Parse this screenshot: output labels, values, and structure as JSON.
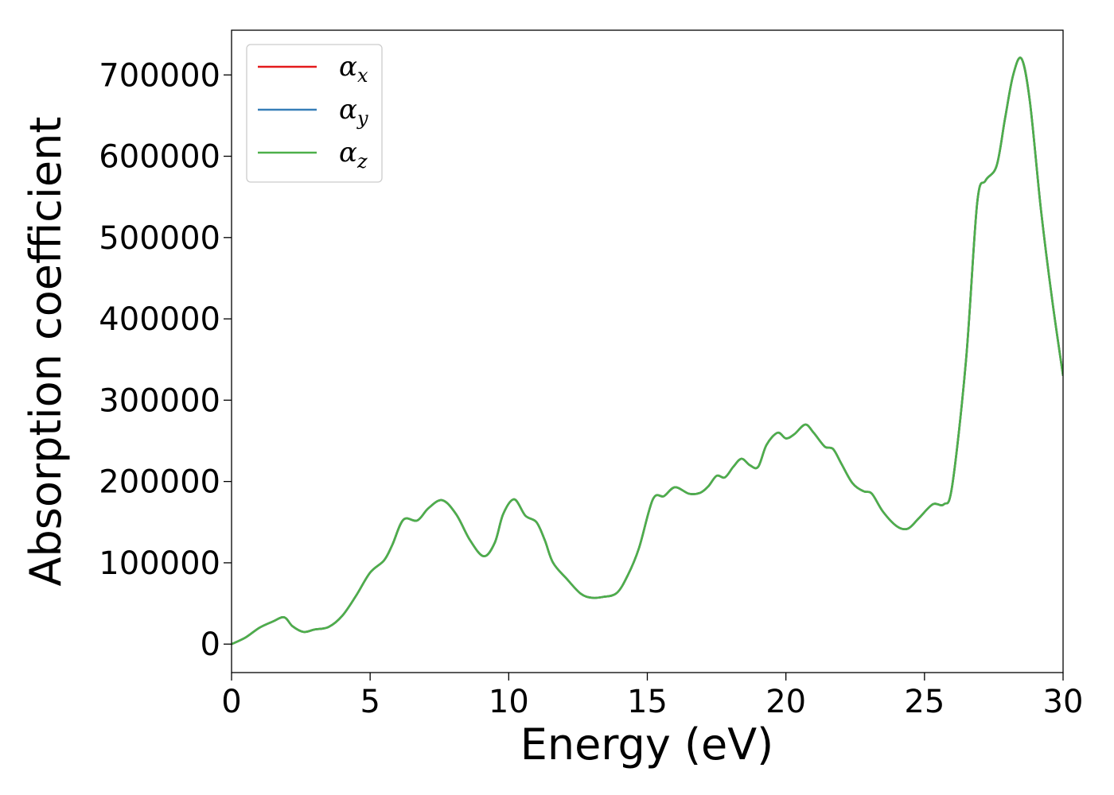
{
  "chart_data": {
    "type": "line",
    "title": "",
    "xlabel": "Energy (eV)",
    "ylabel": "Absorption coefficient",
    "xlim": [
      0,
      30
    ],
    "ylim": [
      -35000,
      755000
    ],
    "xticks": [
      0,
      5,
      10,
      15,
      20,
      25,
      30
    ],
    "yticks": [
      0,
      100000,
      200000,
      300000,
      400000,
      500000,
      600000,
      700000
    ],
    "grid": false,
    "legend_position": "top-left",
    "series": [
      {
        "name": "α_x",
        "label_main": "α",
        "label_sub": "x",
        "color": "#e41a1c",
        "x": [
          0,
          0.5,
          1,
          1.5,
          1.9,
          2.2,
          2.6,
          3,
          3.5,
          4,
          4.5,
          5,
          5.5,
          5.8,
          6.2,
          6.7,
          7.1,
          7.6,
          8.1,
          8.6,
          9.1,
          9.5,
          9.8,
          10.2,
          10.6,
          11.0,
          11.3,
          11.6,
          12.1,
          12.6,
          13.0,
          13.4,
          13.9,
          14.3,
          14.7,
          15.2,
          15.6,
          16.0,
          16.5,
          16.9,
          17.2,
          17.5,
          17.8,
          18.1,
          18.4,
          18.7,
          19.0,
          19.3,
          19.7,
          20.0,
          20.3,
          20.7,
          21.0,
          21.4,
          21.7,
          22.0,
          22.4,
          22.8,
          23.1,
          23.5,
          24.0,
          24.4,
          24.8,
          25.3,
          25.7,
          26.0,
          26.5,
          26.9,
          27.2,
          27.6,
          27.9,
          28.2,
          28.5,
          28.8,
          29.2,
          29.6,
          30.0
        ],
        "values": [
          0,
          8000,
          20000,
          28000,
          33000,
          22000,
          15000,
          18000,
          21000,
          35000,
          60000,
          88000,
          103000,
          122000,
          153000,
          152000,
          167000,
          177000,
          160000,
          128000,
          108000,
          125000,
          160000,
          178000,
          158000,
          150000,
          128000,
          100000,
          80000,
          62000,
          57000,
          58000,
          63000,
          85000,
          118000,
          178000,
          182000,
          193000,
          185000,
          186000,
          194000,
          207000,
          205000,
          218000,
          228000,
          220000,
          218000,
          245000,
          260000,
          253000,
          258000,
          270000,
          260000,
          243000,
          240000,
          222000,
          198000,
          188000,
          185000,
          163000,
          145000,
          142000,
          155000,
          172000,
          172000,
          195000,
          350000,
          542000,
          570000,
          588000,
          645000,
          700000,
          720000,
          668000,
          535000,
          425000,
          330000
        ]
      },
      {
        "name": "α_y",
        "label_main": "α",
        "label_sub": "y",
        "color": "#377eb8",
        "x": [
          0,
          0.5,
          1,
          1.5,
          1.9,
          2.2,
          2.6,
          3,
          3.5,
          4,
          4.5,
          5,
          5.5,
          5.8,
          6.2,
          6.7,
          7.1,
          7.6,
          8.1,
          8.6,
          9.1,
          9.5,
          9.8,
          10.2,
          10.6,
          11.0,
          11.3,
          11.6,
          12.1,
          12.6,
          13.0,
          13.4,
          13.9,
          14.3,
          14.7,
          15.2,
          15.6,
          16.0,
          16.5,
          16.9,
          17.2,
          17.5,
          17.8,
          18.1,
          18.4,
          18.7,
          19.0,
          19.3,
          19.7,
          20.0,
          20.3,
          20.7,
          21.0,
          21.4,
          21.7,
          22.0,
          22.4,
          22.8,
          23.1,
          23.5,
          24.0,
          24.4,
          24.8,
          25.3,
          25.7,
          26.0,
          26.5,
          26.9,
          27.2,
          27.6,
          27.9,
          28.2,
          28.5,
          28.8,
          29.2,
          29.6,
          30.0
        ],
        "values": [
          0,
          8000,
          20000,
          28000,
          33000,
          22000,
          15000,
          18000,
          21000,
          35000,
          60000,
          88000,
          103000,
          122000,
          153000,
          152000,
          167000,
          177000,
          160000,
          128000,
          108000,
          125000,
          160000,
          178000,
          158000,
          150000,
          128000,
          100000,
          80000,
          62000,
          57000,
          58000,
          63000,
          85000,
          118000,
          178000,
          182000,
          193000,
          185000,
          186000,
          194000,
          207000,
          205000,
          218000,
          228000,
          220000,
          218000,
          245000,
          260000,
          253000,
          258000,
          270000,
          260000,
          243000,
          240000,
          222000,
          198000,
          188000,
          185000,
          163000,
          145000,
          142000,
          155000,
          172000,
          172000,
          195000,
          350000,
          542000,
          570000,
          588000,
          645000,
          700000,
          720000,
          668000,
          535000,
          425000,
          330000
        ]
      },
      {
        "name": "α_z",
        "label_main": "α",
        "label_sub": "z",
        "color": "#4daf4a",
        "x": [
          0,
          0.5,
          1,
          1.5,
          1.9,
          2.2,
          2.6,
          3,
          3.5,
          4,
          4.5,
          5,
          5.5,
          5.8,
          6.2,
          6.7,
          7.1,
          7.6,
          8.1,
          8.6,
          9.1,
          9.5,
          9.8,
          10.2,
          10.6,
          11.0,
          11.3,
          11.6,
          12.1,
          12.6,
          13.0,
          13.4,
          13.9,
          14.3,
          14.7,
          15.2,
          15.6,
          16.0,
          16.5,
          16.9,
          17.2,
          17.5,
          17.8,
          18.1,
          18.4,
          18.7,
          19.0,
          19.3,
          19.7,
          20.0,
          20.3,
          20.7,
          21.0,
          21.4,
          21.7,
          22.0,
          22.4,
          22.8,
          23.1,
          23.5,
          24.0,
          24.4,
          24.8,
          25.3,
          25.7,
          26.0,
          26.5,
          26.9,
          27.2,
          27.6,
          27.9,
          28.2,
          28.5,
          28.8,
          29.2,
          29.6,
          30.0
        ],
        "values": [
          0,
          8000,
          20000,
          28000,
          33000,
          22000,
          15000,
          18000,
          21000,
          35000,
          60000,
          88000,
          103000,
          122000,
          153000,
          152000,
          167000,
          177000,
          160000,
          128000,
          108000,
          125000,
          160000,
          178000,
          158000,
          150000,
          128000,
          100000,
          80000,
          62000,
          57000,
          58000,
          63000,
          85000,
          118000,
          178000,
          182000,
          193000,
          185000,
          186000,
          194000,
          207000,
          205000,
          218000,
          228000,
          220000,
          218000,
          245000,
          260000,
          253000,
          258000,
          270000,
          260000,
          243000,
          240000,
          222000,
          198000,
          188000,
          185000,
          163000,
          145000,
          142000,
          155000,
          172000,
          172000,
          195000,
          350000,
          542000,
          570000,
          588000,
          645000,
          700000,
          720000,
          668000,
          535000,
          425000,
          330000
        ]
      }
    ]
  }
}
